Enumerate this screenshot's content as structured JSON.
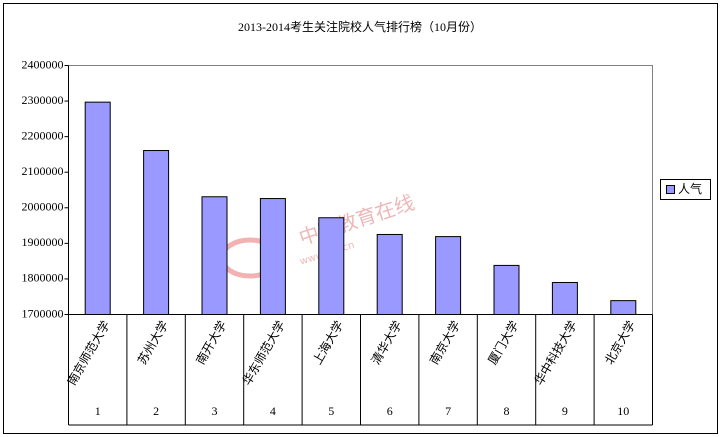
{
  "chart_data": {
    "type": "bar",
    "title": "2013-2014考生关注院校人气排行榜（10月份）",
    "categories": [
      "南京师范大学",
      "苏州大学",
      "南开大学",
      "华东师范大学",
      "上海大学",
      "清华大学",
      "南京大学",
      "厦门大学",
      "华中科技大学",
      "北京大学"
    ],
    "ranks": [
      "1",
      "2",
      "3",
      "4",
      "5",
      "6",
      "7",
      "8",
      "9",
      "10"
    ],
    "series": [
      {
        "name": "人气",
        "color": "#9999ff",
        "values": [
          2297000,
          2161000,
          2031000,
          2026000,
          1972000,
          1925000,
          1919000,
          1838000,
          1790000,
          1739000
        ]
      }
    ],
    "ylim": [
      1700000,
      2400000
    ],
    "yticks": [
      1700000,
      1800000,
      1900000,
      2000000,
      2100000,
      2200000,
      2300000,
      2400000
    ],
    "legend": "right",
    "watermark": [
      "中国教育在线",
      "www.eol.cn"
    ]
  }
}
